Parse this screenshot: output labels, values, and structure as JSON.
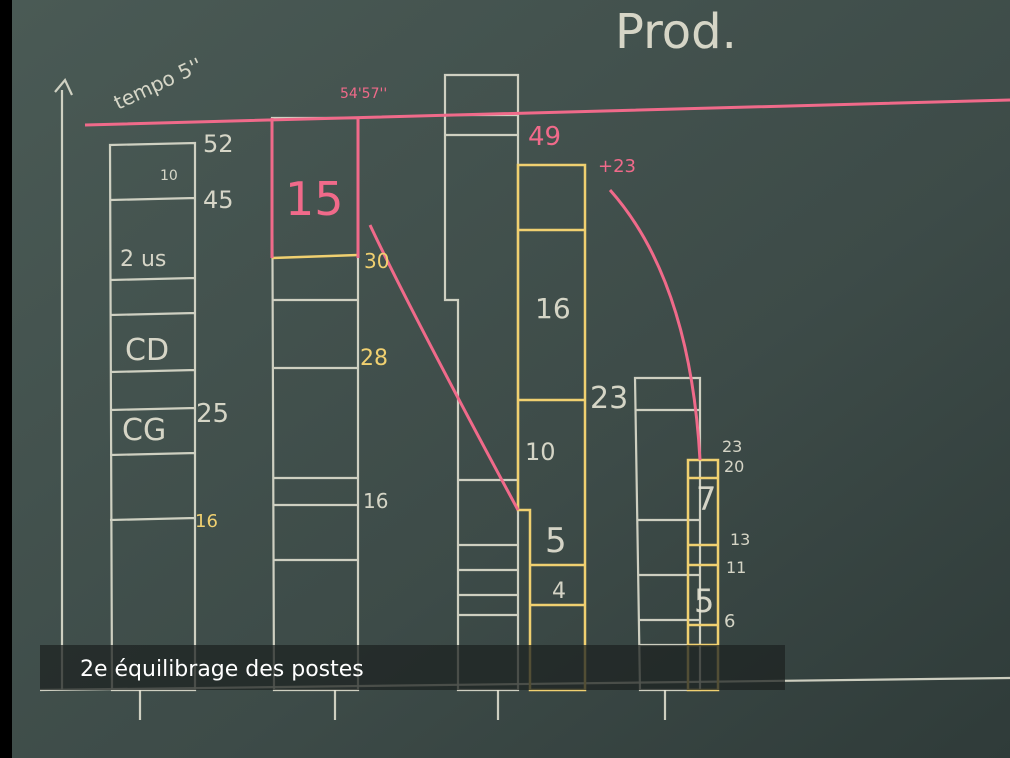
{
  "board": {
    "labels": [
      "Prod.",
      "tempo 5''",
      "52",
      "45",
      "10",
      "2 us",
      "CD",
      "CG",
      "25",
      "16",
      "15",
      "30",
      "28",
      "16",
      "54'57''",
      "49",
      "+23",
      "16",
      "10",
      "5",
      "4",
      "23",
      "7",
      "5",
      "23",
      "20",
      "13",
      "11",
      "6"
    ]
  },
  "caption": "2e équilibrage des postes"
}
